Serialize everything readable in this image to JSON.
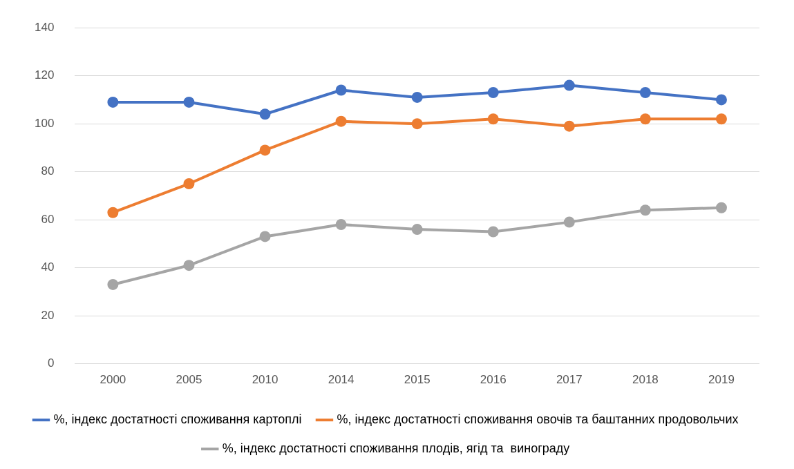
{
  "chart_data": {
    "type": "line",
    "categories": [
      "2000",
      "2005",
      "2010",
      "2014",
      "2015",
      "2016",
      "2017",
      "2018",
      "2019"
    ],
    "series": [
      {
        "name": "%, індекс достатності споживання картоплі",
        "color": "#4472c4",
        "values": [
          109,
          109,
          104,
          114,
          111,
          113,
          116,
          113,
          110
        ]
      },
      {
        "name": "%, індекс достатності споживання овочів та баштанних продовольчих",
        "color": "#ed7d31",
        "values": [
          63,
          75,
          89,
          101,
          100,
          102,
          99,
          102,
          102
        ]
      },
      {
        "name": "%, індекс достатності споживання плодів, ягід та  винограду",
        "color": "#a5a5a5",
        "values": [
          33,
          41,
          53,
          58,
          56,
          55,
          59,
          64,
          65
        ]
      }
    ],
    "ylim": [
      0,
      140
    ],
    "yticks": [
      0,
      20,
      40,
      60,
      80,
      100,
      120,
      140
    ],
    "grid": "y",
    "legend": "bottom",
    "marker": "circle",
    "line_style": "solid"
  }
}
